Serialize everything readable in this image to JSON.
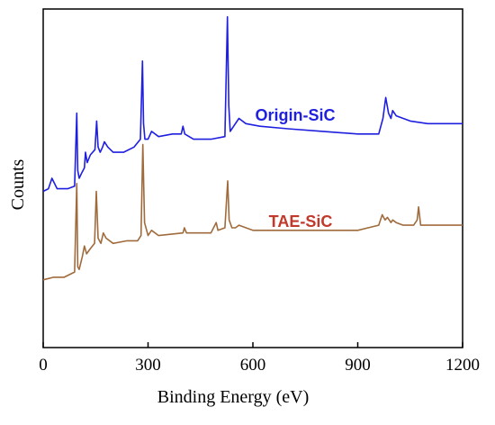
{
  "chart_data": {
    "type": "line",
    "title": "",
    "xlabel": "Binding Energy (eV)",
    "ylabel": "Counts",
    "xlim": [
      0,
      1200
    ],
    "x_ticks": [
      0,
      300,
      600,
      900,
      1200
    ],
    "y_ticks_shown": false,
    "grid": false,
    "legend": "none",
    "series": [
      {
        "name": "Origin-SiC",
        "color": "#1f1fe0",
        "label_color": "#1f1fe0",
        "x": [
          0,
          15,
          25,
          40,
          70,
          90,
          96,
          99,
          103,
          110,
          118,
          121,
          126,
          135,
          148,
          153,
          157,
          163,
          170,
          175,
          185,
          200,
          230,
          260,
          278,
          284,
          287,
          291,
          300,
          310,
          330,
          370,
          395,
          400,
          405,
          430,
          480,
          520,
          527,
          531,
          535,
          545,
          560,
          580,
          620,
          700,
          800,
          900,
          960,
          972,
          980,
          988,
          995,
          1000,
          1010,
          1050,
          1100,
          1150,
          1200
        ],
        "y": [
          0.6,
          0.61,
          0.65,
          0.61,
          0.61,
          0.62,
          0.9,
          0.68,
          0.65,
          0.67,
          0.69,
          0.75,
          0.71,
          0.74,
          0.76,
          0.87,
          0.77,
          0.75,
          0.77,
          0.79,
          0.77,
          0.75,
          0.75,
          0.77,
          0.8,
          1.1,
          0.86,
          0.8,
          0.8,
          0.83,
          0.81,
          0.82,
          0.82,
          0.85,
          0.82,
          0.8,
          0.8,
          0.81,
          1.27,
          0.93,
          0.83,
          0.85,
          0.88,
          0.86,
          0.85,
          0.84,
          0.83,
          0.82,
          0.82,
          0.88,
          0.96,
          0.9,
          0.88,
          0.91,
          0.89,
          0.87,
          0.86,
          0.86,
          0.86
        ]
      },
      {
        "name": "TAE-SiC",
        "color": "#a06b3c",
        "label_color": "#c0392b",
        "x": [
          0,
          30,
          60,
          90,
          96,
          99,
          103,
          112,
          118,
          124,
          135,
          147,
          152,
          157,
          165,
          172,
          180,
          200,
          240,
          270,
          280,
          285,
          290,
          300,
          310,
          330,
          400,
          404,
          410,
          480,
          495,
          500,
          520,
          528,
          532,
          540,
          550,
          560,
          600,
          700,
          800,
          900,
          960,
          970,
          978,
          985,
          995,
          1000,
          1010,
          1030,
          1060,
          1070,
          1074,
          1080,
          1100,
          1200
        ],
        "y": [
          0.26,
          0.27,
          0.27,
          0.29,
          0.63,
          0.31,
          0.3,
          0.35,
          0.39,
          0.36,
          0.38,
          0.4,
          0.6,
          0.42,
          0.4,
          0.44,
          0.42,
          0.4,
          0.41,
          0.41,
          0.43,
          0.78,
          0.48,
          0.43,
          0.45,
          0.43,
          0.44,
          0.46,
          0.44,
          0.44,
          0.48,
          0.45,
          0.46,
          0.64,
          0.49,
          0.46,
          0.46,
          0.47,
          0.45,
          0.45,
          0.45,
          0.45,
          0.47,
          0.51,
          0.49,
          0.5,
          0.48,
          0.49,
          0.48,
          0.47,
          0.47,
          0.49,
          0.54,
          0.47,
          0.47,
          0.47
        ]
      }
    ]
  }
}
